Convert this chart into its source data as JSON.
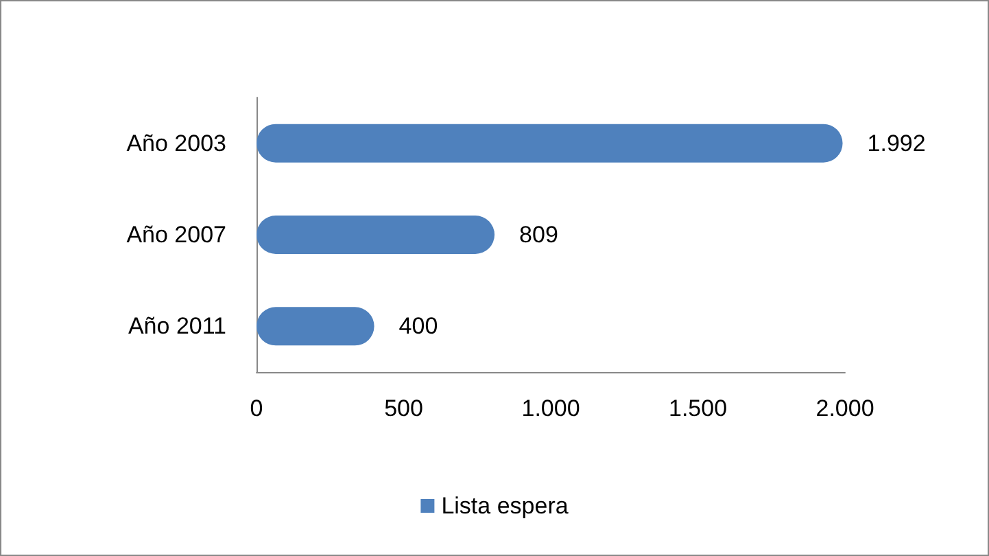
{
  "chart_data": {
    "type": "bar",
    "orientation": "horizontal",
    "categories": [
      "Año 2003",
      "Año 2007",
      "Año 2011"
    ],
    "series": [
      {
        "name": "Lista espera",
        "color": "#4f81bd",
        "values": [
          1992,
          809,
          400
        ],
        "value_labels": [
          "1.992",
          "809",
          "400"
        ]
      }
    ],
    "xlim": [
      0,
      2000
    ],
    "xticks": [
      0,
      500,
      {
        "value": 1000,
        "label": "1.000"
      },
      {
        "value": 1500,
        "label": "1.500"
      },
      {
        "value": 2000,
        "label": "2.000"
      }
    ],
    "grid": false,
    "legend": "bottom"
  }
}
